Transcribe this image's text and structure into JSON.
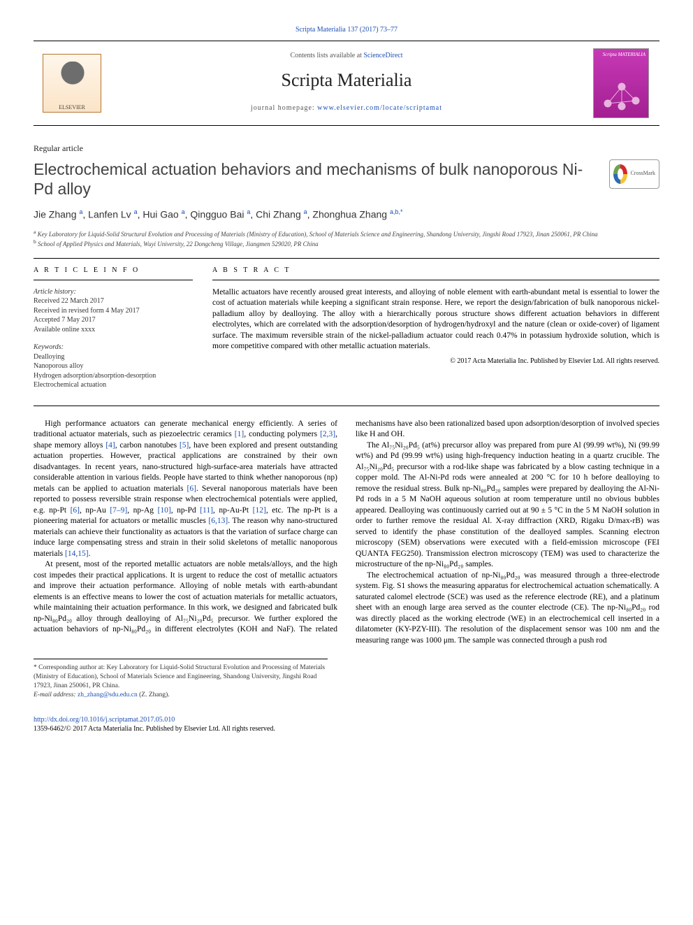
{
  "journal_bar": "Scripta Materialia 137 (2017) 73–77",
  "banner": {
    "contents_line_pre": "Contents lists available at ",
    "contents_link": "ScienceDirect",
    "journal_name": "Scripta Materialia",
    "homepage_pre": "journal homepage: ",
    "homepage_url": "www.elsevier.com/locate/scriptamat",
    "elsevier_label": "ELSEVIER",
    "cover_label": "Scripta MATERIALIA"
  },
  "article_type": "Regular article",
  "title": "Electrochemical actuation behaviors and mechanisms of bulk nanoporous Ni-Pd alloy",
  "crossmark_label": "CrossMark",
  "authors_html": "Jie Zhang <sup>a</sup>, Lanfen Lv <sup>a</sup>, Hui Gao <sup>a</sup>, Qingguo Bai <sup>a</sup>, Chi Zhang <sup>a</sup>, Zhonghua Zhang <sup>a,b,*</sup>",
  "affiliations": [
    "a  Key Laboratory for Liquid-Solid Structural Evolution and Processing of Materials (Ministry of Education), School of Materials Science and Engineering, Shandong University, Jingshi Road 17923, Jinan 250061, PR China",
    "b  School of Applied Physics and Materials, Wuyi University, 22 Dongcheng Village, Jiangmen 529020, PR China"
  ],
  "info_heading": "A R T I C L E   I N F O",
  "abstract_heading": "A B S T R A C T",
  "history": {
    "label": "Article history:",
    "items": [
      "Received 22 March 2017",
      "Received in revised form 4 May 2017",
      "Accepted 7 May 2017",
      "Available online xxxx"
    ]
  },
  "keywords": {
    "label": "Keywords:",
    "items": [
      "Dealloying",
      "Nanoporous alloy",
      "Hydrogen adsorption/absorption-desorption",
      "Electrochemical actuation"
    ]
  },
  "abstract": "Metallic actuators have recently aroused great interests, and alloying of noble element with earth-abundant metal is essential to lower the cost of actuation materials while keeping a significant strain response. Here, we report the design/fabrication of bulk nanoporous nickel-palladium alloy by dealloying. The alloy with a hierarchically porous structure shows different actuation behaviors in different electrolytes, which are correlated with the adsorption/desorption of hydrogen/hydroxyl and the nature (clean or oxide-cover) of ligament surface. The maximum reversible strain of the nickel-palladium actuator could reach 0.47% in potassium hydroxide solution, which is more competitive compared with other metallic actuation materials.",
  "abstract_copyright": "© 2017 Acta Materialia Inc. Published by Elsevier Ltd. All rights reserved.",
  "body": {
    "p1": "High performance actuators can generate mechanical energy efficiently. A series of traditional actuator materials, such as piezoelectric ceramics [1], conducting polymers [2,3], shape memory alloys [4], carbon nanotubes [5], have been explored and present outstanding actuation properties. However, practical applications are constrained by their own disadvantages. In recent years, nano-structured high-surface-area materials have attracted considerable attention in various fields. People have started to think whether nanoporous (np) metals can be applied to actuation materials [6]. Several nanoporous materials have been reported to possess reversible strain response when electrochemical potentials were applied, e.g. np-Pt [6], np-Au [7–9], np-Ag [10], np-Pd [11], np-Au-Pt [12], etc. The np-Pt is a pioneering material for actuators or metallic muscles [6,13]. The reason why nano-structured materials can achieve their functionality as actuators is that the variation of surface charge can induce large compensating stress and strain in their solid skeletons of metallic nanoporous materials [14,15].",
    "p2": "At present, most of the reported metallic actuators are noble metals/alloys, and the high cost impedes their practical applications. It is urgent to reduce the cost of metallic actuators and improve their actuation performance. Alloying of noble metals with earth-abundant elements is an effective means to lower the cost of actuation materials for metallic actuators, while maintaining their actuation performance. In this work, we designed and fabricated bulk np-Ni₈₀Pd₂₀ alloy through dealloying of Al₇₅Ni₂₀Pd₅ precursor. We further explored the actuation behaviors of np-Ni₈₀Pd₂₀ in different electrolytes (KOH and NaF). The related mechanisms have also been rationalized based upon adsorption/desorption of involved species like H and OH.",
    "p3": "The Al₇₅Ni₂₀Pd₅ (at%) precursor alloy was prepared from pure Al (99.99 wt%), Ni (99.99 wt%) and Pd (99.99 wt%) using high-frequency induction heating in a quartz crucible. The Al₇₅Ni₂₀Pd₅ precursor with a rod-like shape was fabricated by a blow casting technique in a copper mold. The Al-Ni-Pd rods were annealed at 200 °C for 10 h before dealloying to remove the residual stress. Bulk np-Ni₈₀Pd₂₀ samples were prepared by dealloying the Al-Ni-Pd rods in a 5 M NaOH aqueous solution at room temperature until no obvious bubbles appeared. Dealloying was continuously carried out at 90 ± 5 °C in the 5 M NaOH solution in order to further remove the residual Al. X-ray diffraction (XRD, Rigaku D/max-rB) was served to identify the phase constitution of the dealloyed samples. Scanning electron microscopy (SEM) observations were executed with a field-emission microscope (FEI QUANTA FEG250). Transmission electron microscopy (TEM) was used to characterize the microstructure of the np-Ni₈₀Pd₂₀ samples.",
    "p4": "The electrochemical actuation of np-Ni₈₀Pd₂₀ was measured through a three-electrode system. Fig. S1 shows the measuring apparatus for electrochemical actuation schematically. A saturated calomel electrode (SCE) was used as the reference electrode (RE), and a platinum sheet with an enough large area served as the counter electrode (CE). The np-Ni₈₀Pd₂₀ rod was directly placed as the working electrode (WE) in an electrochemical cell inserted in a dilatometer (KY-PZY-III). The resolution of the displacement sensor was 100 nm and the measuring range was 1000 μm. The sample was connected through a push rod"
  },
  "refs": {
    "r1": "[1]",
    "r23": "[2,3]",
    "r4": "[4]",
    "r5": "[5]",
    "r6a": "[6]",
    "r6b": "[6]",
    "r79": "[7–9]",
    "r10": "[10]",
    "r11": "[11]",
    "r12": "[12]",
    "r613": "[6,13]",
    "r1415": "[14,15]"
  },
  "footnote": {
    "corr_label": "* Corresponding author at: Key Laboratory for Liquid-Solid Structural Evolution and Processing of Materials (Ministry of Education), School of Materials Science and Engineering, Shandong University, Jingshi Road 17923, Jinan 250061, PR China.",
    "email_label": "E-mail address: ",
    "email": "zh_zhang@sdu.edu.cn",
    "email_person": " (Z. Zhang)."
  },
  "footer": {
    "doi": "http://dx.doi.org/10.1016/j.scriptamat.2017.05.010",
    "issn_line": "1359-6462/© 2017 Acta Materialia Inc. Published by Elsevier Ltd. All rights reserved."
  },
  "colors": {
    "link": "#1b4fb3",
    "text": "#000000",
    "muted": "#555555",
    "rule": "#000000",
    "cover_bg": "#c739b6"
  },
  "typography": {
    "body_font": "Times New Roman",
    "body_size_pt": 9,
    "title_size_pt": 17,
    "journal_name_size_pt": 20
  }
}
